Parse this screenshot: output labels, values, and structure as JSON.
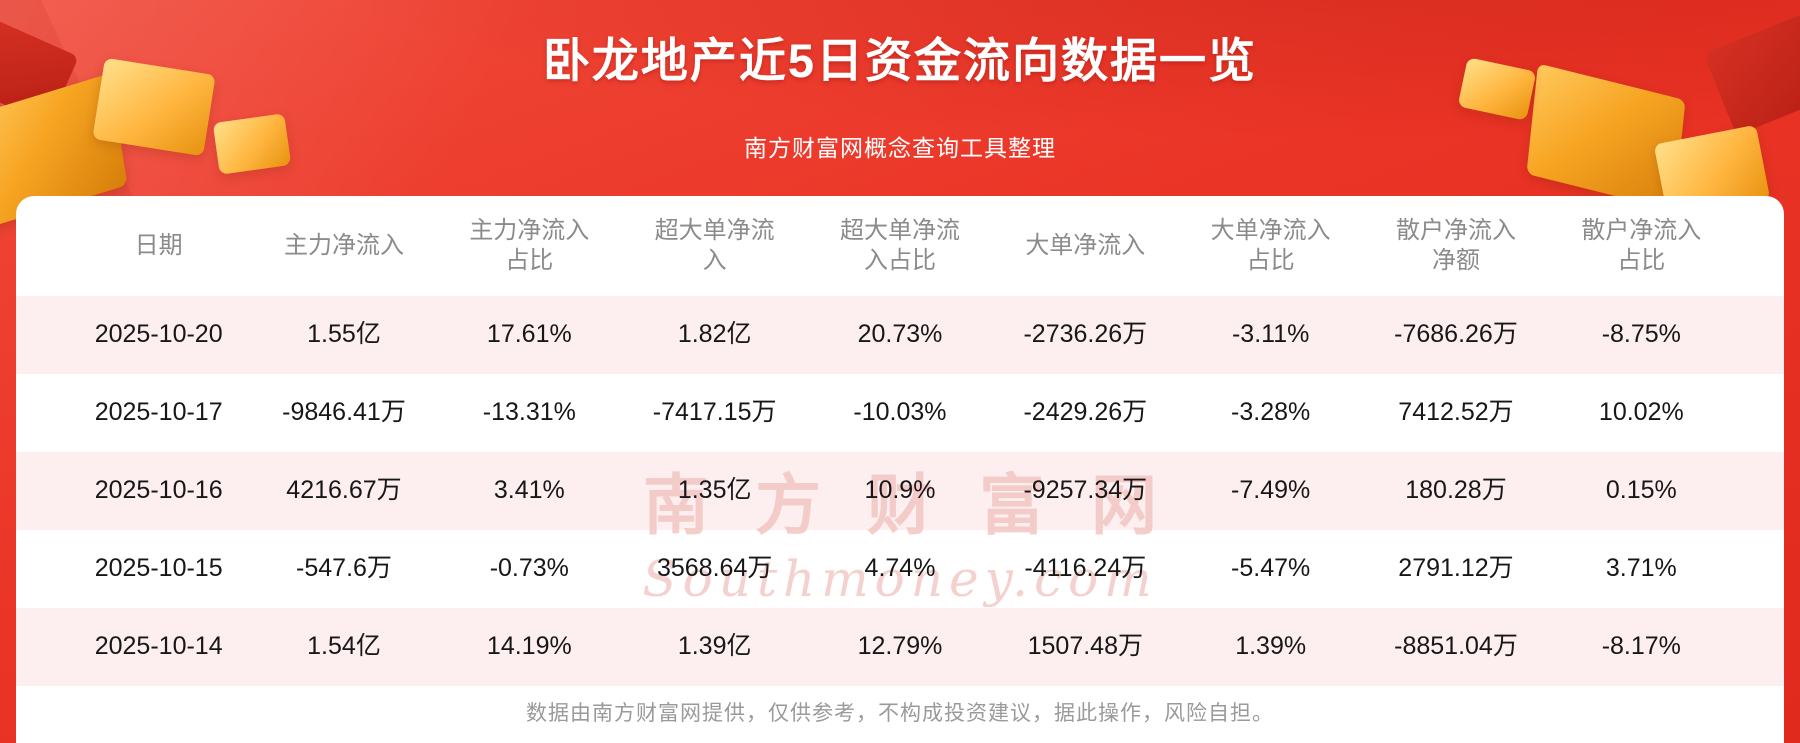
{
  "header": {
    "title": "卧龙地产近5日资金流向数据一览",
    "subtitle": "南方财富网概念查询工具整理"
  },
  "watermark": {
    "cn": "南方财富网",
    "en": "Southmoney.com"
  },
  "footer": {
    "disclaimer": "数据由南方财富网提供，仅供参考，不构成投资建议，据此操作，风险自担。"
  },
  "colors": {
    "banner_red": "#ea3426",
    "panel_bg": "#ffffff",
    "row_alt_pink": "#fdeeef",
    "header_text_gray": "#8b8b8b",
    "cell_text": "#171717",
    "footer_gray": "#9a9a9a",
    "gold_accent": "#f7a422",
    "watermark_pink": "#f1c6c2"
  },
  "chart_data": {
    "type": "table",
    "title": "卧龙地产近5日资金流向数据一览",
    "columns": [
      "日期",
      "主力净流入",
      "主力净流入占比",
      "超大单净流入",
      "超大单净流入占比",
      "大单净流入",
      "大单净流入占比",
      "散户净流入净额",
      "散户净流入占比"
    ],
    "columns_display": [
      "日期",
      "主力净流入",
      "主力净流入\n占比",
      "超大单净流\n入",
      "超大单净流\n入占比",
      "大单净流入",
      "大单净流入\n占比",
      "散户净流入\n净额",
      "散户净流入\n占比"
    ],
    "rows": [
      [
        "2025-10-20",
        "1.55亿",
        "17.61%",
        "1.82亿",
        "20.73%",
        "-2736.26万",
        "-3.11%",
        "-7686.26万",
        "-8.75%"
      ],
      [
        "2025-10-17",
        "-9846.41万",
        "-13.31%",
        "-7417.15万",
        "-10.03%",
        "-2429.26万",
        "-3.28%",
        "7412.52万",
        "10.02%"
      ],
      [
        "2025-10-16",
        "4216.67万",
        "3.41%",
        "1.35亿",
        "10.9%",
        "-9257.34万",
        "-7.49%",
        "180.28万",
        "0.15%"
      ],
      [
        "2025-10-15",
        "-547.6万",
        "-0.73%",
        "3568.64万",
        "4.74%",
        "-4116.24万",
        "-5.47%",
        "2791.12万",
        "3.71%"
      ],
      [
        "2025-10-14",
        "1.54亿",
        "14.19%",
        "1.39亿",
        "12.79%",
        "1507.48万",
        "1.39%",
        "-8851.04万",
        "-8.17%"
      ]
    ]
  }
}
